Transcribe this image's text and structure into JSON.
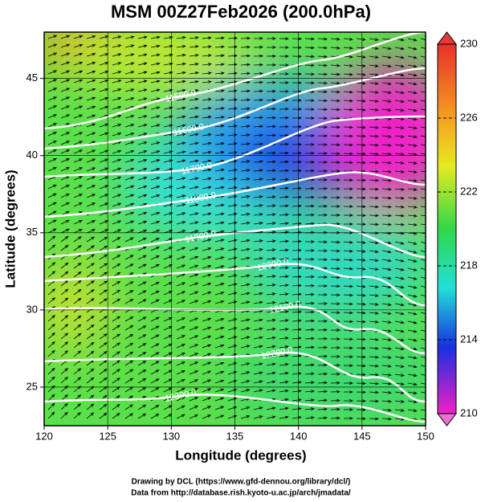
{
  "title": "MSM 00Z27Feb2026 (200.0hPa)",
  "x_label": "Longitude (degrees)",
  "y_label": "Latitude  (degrees)",
  "xlim": [
    120,
    150
  ],
  "xticks": [
    120,
    125,
    130,
    135,
    140,
    145,
    150
  ],
  "ylim": [
    22.5,
    48
  ],
  "yticks": [
    25,
    30,
    35,
    40,
    45
  ],
  "colorbar": {
    "lim": [
      210,
      230
    ],
    "ticks": [
      210,
      214,
      218,
      222,
      226,
      230
    ]
  },
  "contour_labels": [
    "11500.0",
    "11600.0",
    "11700.0",
    "11800.0",
    "11900.0",
    "12000.0",
    "12100.0",
    "12200.0",
    "12300.0"
  ],
  "footer": [
    "Drawing by DCL (https://www.gfd-dennou.org/library/dcl/)",
    "Data from http://database.rish.kyoto-u.ac.jp/arch/jmadata/"
  ]
}
